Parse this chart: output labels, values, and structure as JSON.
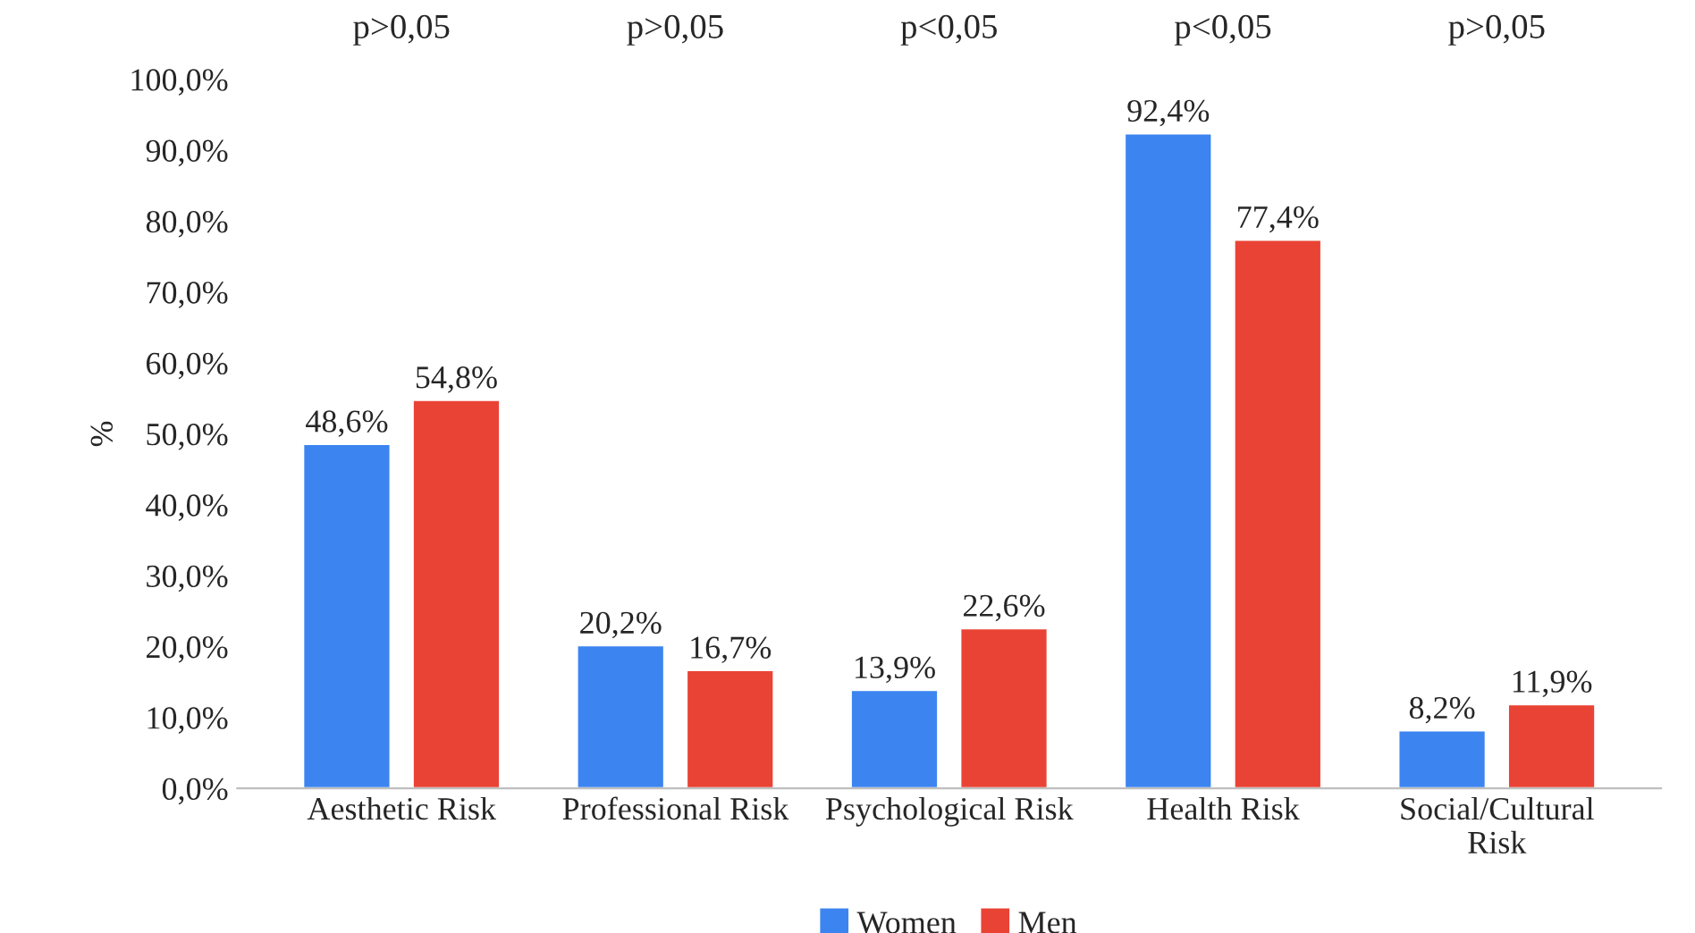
{
  "chart_data": {
    "type": "bar",
    "ylabel": "%",
    "categories": [
      "Aesthetic Risk",
      "Professional Risk",
      "Psychological Risk",
      "Health Risk",
      "Social/Cultural\nRisk"
    ],
    "series": [
      {
        "name": "Women",
        "color": "#3c85f0",
        "values": [
          48.6,
          20.2,
          13.9,
          92.4,
          8.2
        ],
        "value_labels": [
          "48,6%",
          "20,2%",
          "13,9%",
          "92,4%",
          "8,2%"
        ]
      },
      {
        "name": "Men",
        "color": "#e94335",
        "values": [
          54.8,
          16.7,
          22.6,
          77.4,
          11.9
        ],
        "value_labels": [
          "54,8%",
          "16,7%",
          "22,6%",
          "77,4%",
          "11,9%"
        ]
      }
    ],
    "ylim": [
      0,
      100
    ],
    "yticks": [
      {
        "value": 0,
        "label": "0,0%"
      },
      {
        "value": 10,
        "label": "10,0%"
      },
      {
        "value": 20,
        "label": "20,0%"
      },
      {
        "value": 30,
        "label": "30,0%"
      },
      {
        "value": 40,
        "label": "40,0%"
      },
      {
        "value": 50,
        "label": "50,0%"
      },
      {
        "value": 60,
        "label": "60,0%"
      },
      {
        "value": 70,
        "label": "70,0%"
      },
      {
        "value": 80,
        "label": "80,0%"
      },
      {
        "value": 90,
        "label": "90,0%"
      },
      {
        "value": 100,
        "label": "100,0%"
      }
    ],
    "annotations": [
      "p>0,05",
      "p>0,05",
      "p<0,05",
      "p<0,05",
      "p>0,05"
    ],
    "grid": false,
    "legend": "bottom"
  }
}
